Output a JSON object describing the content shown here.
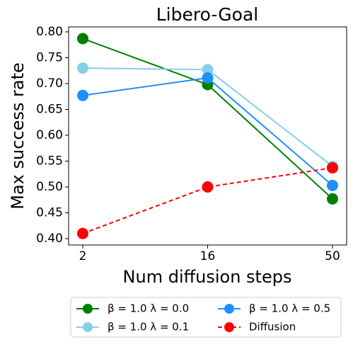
{
  "chart_data": {
    "type": "line",
    "title": "Libero-Goal",
    "x_label": "Num diffusion steps",
    "y_label": "Max success rate",
    "categories": [
      "2",
      "16",
      "50"
    ],
    "series": [
      {
        "name": "β = 1.0 λ = 0.0",
        "color": "#008000",
        "linestyle": "solid",
        "values": [
          0.787,
          0.698,
          0.477
        ]
      },
      {
        "name": "β = 1.0 λ = 0.1",
        "color": "#87ceeb",
        "linestyle": "solid",
        "values": [
          0.73,
          0.727,
          0.54
        ]
      },
      {
        "name": "β = 1.0 λ = 0.5",
        "color": "#1e90ff",
        "linestyle": "solid",
        "values": [
          0.677,
          0.711,
          0.503
        ]
      },
      {
        "name": "Diffusion",
        "color": "#ff0000",
        "linestyle": "dashed",
        "values": [
          0.41,
          0.5,
          0.537
        ]
      }
    ],
    "ylim": [
      0.3877,
      0.8096
    ],
    "yticks": [
      {
        "value": 0.4,
        "label": "0.40"
      },
      {
        "value": 0.45,
        "label": "0.45"
      },
      {
        "value": 0.5,
        "label": "0.50"
      },
      {
        "value": 0.55,
        "label": "0.55"
      },
      {
        "value": 0.6,
        "label": "0.60"
      },
      {
        "value": 0.65,
        "label": "0.65"
      },
      {
        "value": 0.7,
        "label": "0.70"
      },
      {
        "value": 0.75,
        "label": "0.75"
      },
      {
        "value": 0.8,
        "label": "0.80"
      }
    ],
    "grid": false,
    "legend": "below"
  }
}
